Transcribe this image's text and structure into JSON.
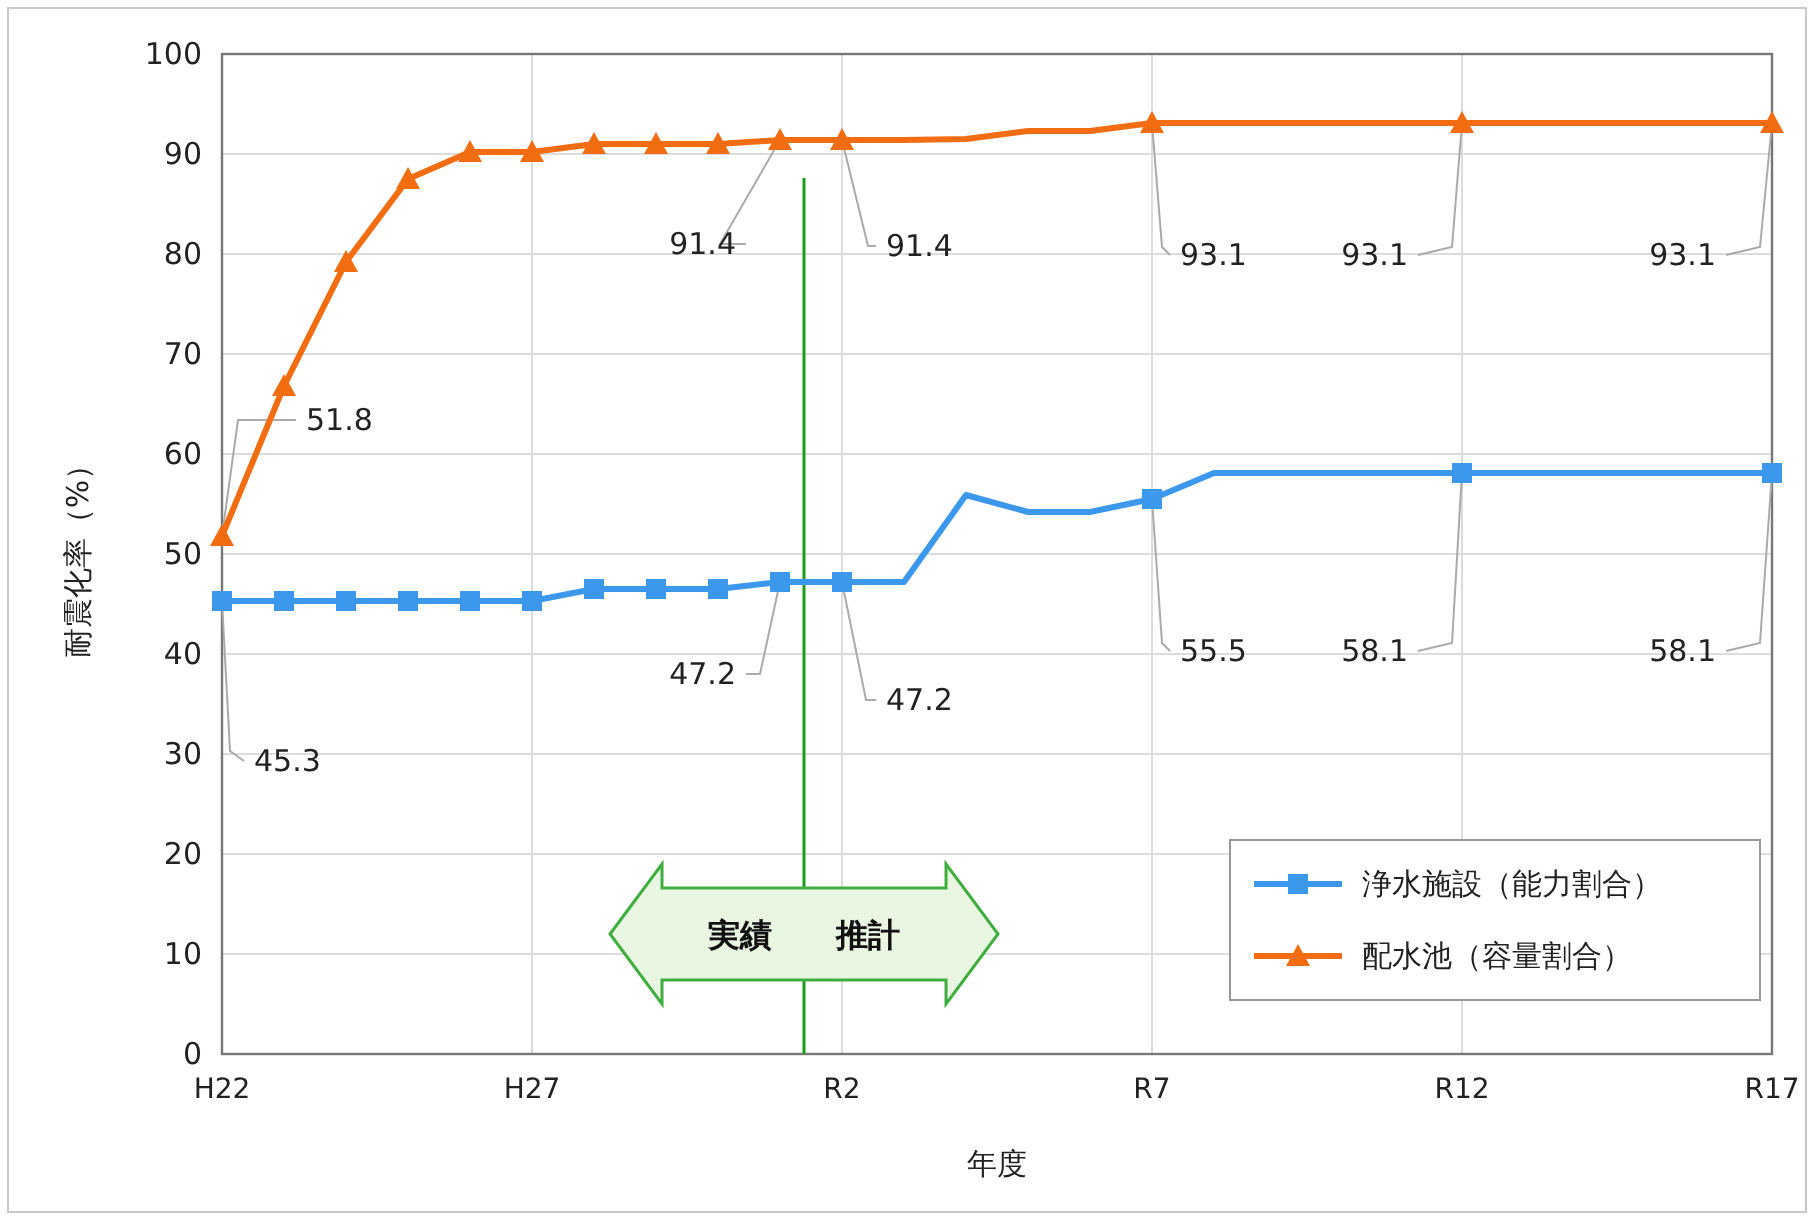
{
  "chart_data": {
    "type": "line",
    "ylabel": "耐震化率（%）",
    "xlabel": "年度",
    "categories": [
      "H22",
      null,
      null,
      null,
      null,
      "H27",
      null,
      null,
      null,
      null,
      "R2",
      null,
      null,
      null,
      null,
      "R7",
      null,
      null,
      null,
      null,
      "R12",
      null,
      null,
      null,
      null,
      "R17"
    ],
    "ylim": [
      0,
      100
    ],
    "yticks": [
      0,
      10,
      20,
      30,
      40,
      50,
      60,
      70,
      80,
      90,
      100
    ],
    "grid": true,
    "legend": "bottom right",
    "series": [
      {
        "name": "浄水施設（能力割合）",
        "color": "#3c98ec",
        "values": [
          45.3,
          45.3,
          45.3,
          45.3,
          45.3,
          45.3,
          46.5,
          46.5,
          46.5,
          47.2,
          47.2,
          47.2,
          55.9,
          54.2,
          54.2,
          55.5,
          58.1,
          58.1,
          58.1,
          58.1,
          58.1,
          58.1,
          58.1,
          58.1,
          58.1,
          58.1
        ]
      },
      {
        "color": "#3c98ec",
        "type": "scatter",
        "marker": "square",
        "values": [
          45.3,
          45.3,
          45.3,
          45.3,
          45.3,
          45.3,
          46.5,
          46.5,
          46.5,
          47.2,
          47.2,
          null,
          null,
          null,
          null,
          55.5,
          null,
          null,
          null,
          null,
          58.1,
          null,
          null,
          null,
          null,
          58.1
        ]
      },
      {
        "name": "配水池（容量割合）",
        "color": "#f26d12",
        "values": [
          51.8,
          66.8,
          79.2,
          87.5,
          90.2,
          90.2,
          91.0,
          91.0,
          91.0,
          91.4,
          91.4,
          91.4,
          91.5,
          92.3,
          92.3,
          93.1,
          93.1,
          93.1,
          93.1,
          93.1,
          93.1,
          93.1,
          93.1,
          93.1,
          93.1,
          93.1
        ]
      },
      {
        "color": "#f26d12",
        "type": "scatter",
        "marker": "triangle",
        "values": [
          51.8,
          66.8,
          79.2,
          87.5,
          90.2,
          90.2,
          91.0,
          91.0,
          91.0,
          91.4,
          91.4,
          null,
          null,
          null,
          null,
          93.1,
          null,
          null,
          null,
          null,
          93.1,
          null,
          null,
          null,
          null,
          93.1
        ]
      }
    ],
    "annotations": [
      {
        "text": "51.8",
        "x": "H22",
        "y": 51.8
      },
      {
        "text": "45.3",
        "x": "H22",
        "y": 45.3
      },
      {
        "text": "91.4",
        "y": 91.4
      },
      {
        "text": "91.4",
        "x": "R2",
        "y": 91.4
      },
      {
        "text": "47.2",
        "y": 47.2
      },
      {
        "text": "47.2",
        "x": "R2",
        "y": 47.2
      },
      {
        "text": "93.1",
        "x": "R7",
        "y": 93.1
      },
      {
        "text": "93.1",
        "x": "R12",
        "y": 93.1
      },
      {
        "text": "93.1",
        "x": "R17",
        "y": 93.1
      },
      {
        "text": "55.5",
        "x": "R7",
        "y": 55.5
      },
      {
        "text": "58.1",
        "x": "R12",
        "y": 58.1
      },
      {
        "text": "58.1",
        "x": "R17",
        "y": 58.1
      },
      "実績",
      "推計"
    ]
  }
}
